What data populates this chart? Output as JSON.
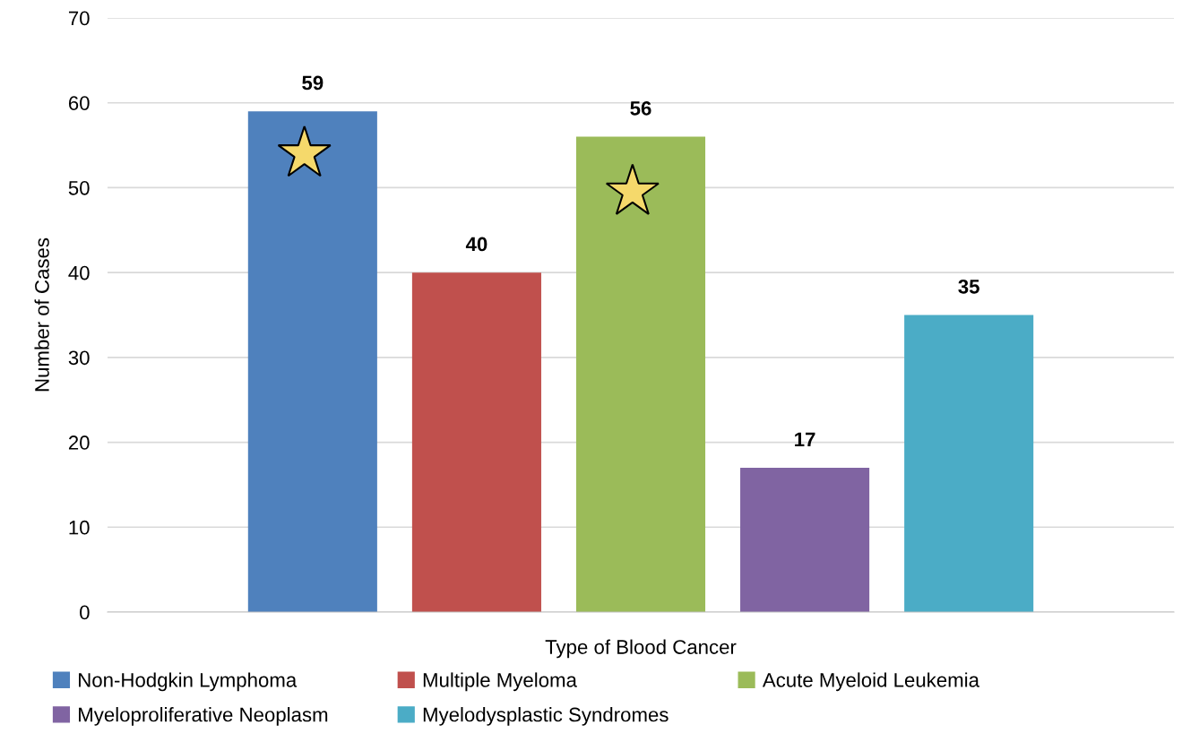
{
  "chart_data": {
    "type": "bar",
    "xlabel": "Type of Blood Cancer",
    "ylabel": "Number of Cases",
    "categories": [
      null
    ],
    "series": [
      {
        "name": "Non-Hodgkin Lymphoma",
        "color": "#4f81bd",
        "values": [
          59
        ]
      },
      {
        "name": "Multiple Myeloma",
        "color": "#c0504d",
        "values": [
          40
        ]
      },
      {
        "name": "Acute Myeloid Leukemia",
        "color": "#9bbb59",
        "values": [
          56
        ]
      },
      {
        "name": "Myeloproliferative Neoplasm",
        "color": "#8064a2",
        "values": [
          17
        ]
      },
      {
        "name": "Myelodysplastic Syndromes",
        "color": "#4bacc6",
        "values": [
          35
        ]
      }
    ],
    "ylim": [
      0,
      70
    ],
    "yticks": [
      0,
      10,
      20,
      30,
      40,
      50,
      60,
      70
    ],
    "grid": "y",
    "legend": "bottom",
    "data_labels": true
  }
}
